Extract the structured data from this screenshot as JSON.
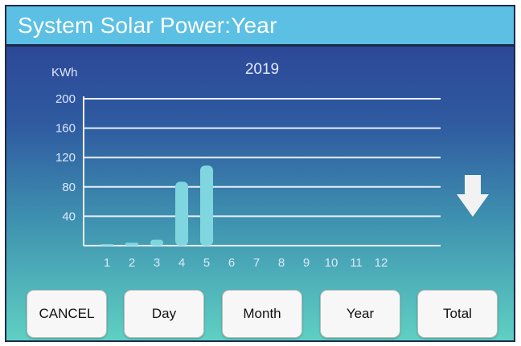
{
  "header": {
    "title": "System Solar Power:Year"
  },
  "chart_data": {
    "type": "bar",
    "title": "2019",
    "ylabel": "KWh",
    "xlabel": "",
    "categories": [
      "1",
      "2",
      "3",
      "4",
      "5",
      "6",
      "7",
      "8",
      "9",
      "10",
      "11",
      "12"
    ],
    "values": [
      2,
      4,
      8,
      87,
      109,
      0,
      0,
      0,
      0,
      0,
      0,
      0
    ],
    "ylim": [
      0,
      200
    ],
    "yticks": [
      40,
      80,
      120,
      160,
      200
    ],
    "grid": true,
    "legend": "none",
    "bar_color": "#7fd6de"
  },
  "navigation": {
    "scroll_icon": "down-arrow-icon"
  },
  "buttons": {
    "cancel": "CANCEL",
    "day": "Day",
    "month": "Month",
    "year": "Year",
    "total": "Total"
  },
  "colors": {
    "title_bar": "#5bc0e3",
    "bar": "#7fd6de",
    "grid": "#e8eeff"
  }
}
